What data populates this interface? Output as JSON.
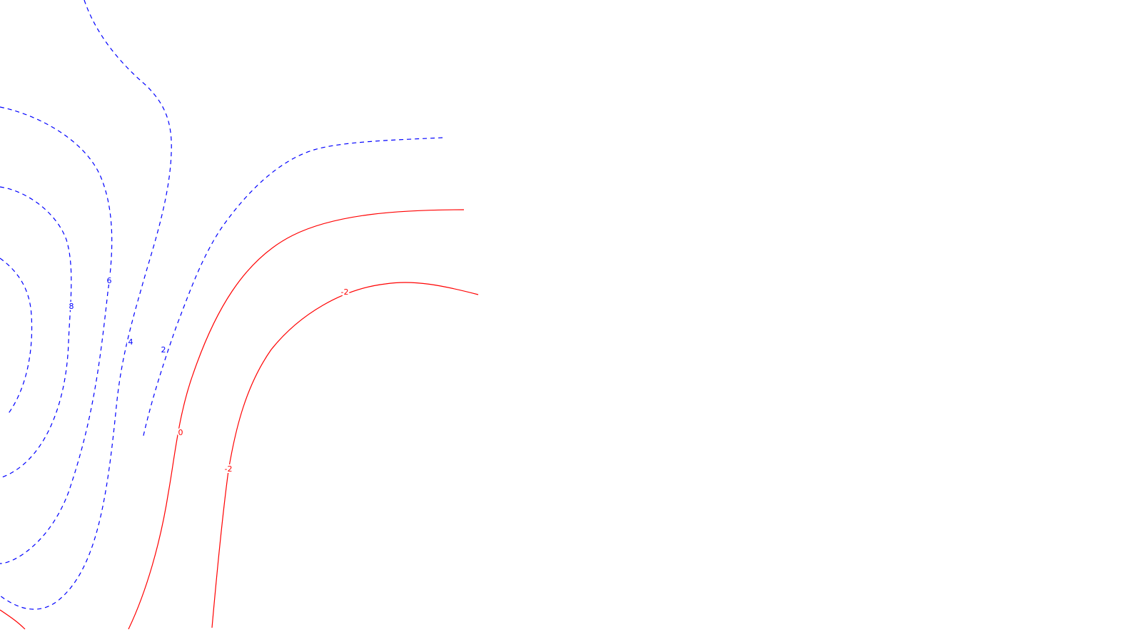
{
  "chart_data": {
    "type": "contour",
    "colors": {
      "negative": "#ff0000",
      "positive": "#0000ff"
    },
    "line_styles": {
      "negative": "solid",
      "positive": "dashed"
    },
    "levels": [
      {
        "value": 8,
        "label": "8"
      },
      {
        "value": 6,
        "label": "6"
      },
      {
        "value": 4,
        "label": "4"
      },
      {
        "value": 2,
        "label": "2"
      },
      {
        "value": 0,
        "label": "0"
      },
      {
        "value": -2,
        "label": "-2"
      },
      {
        "value": -2,
        "label": "-2"
      },
      {
        "value": -2,
        "label": "-2"
      }
    ],
    "grid": false,
    "legend": false
  }
}
